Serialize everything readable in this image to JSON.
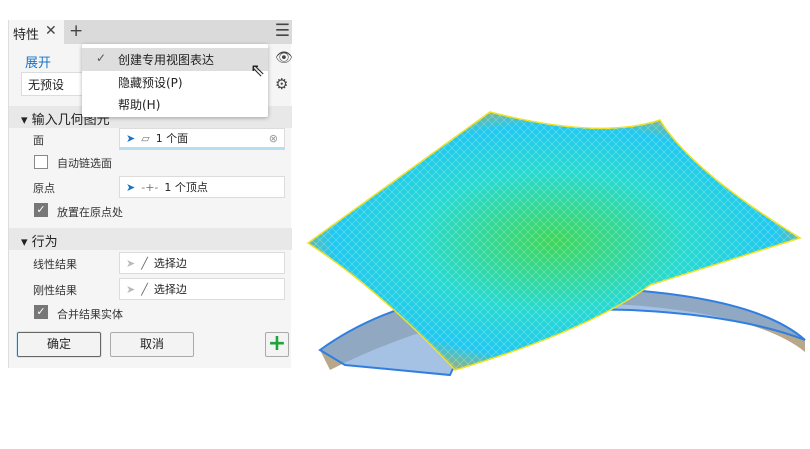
{
  "panel": {
    "tab_label": "特性",
    "expand_link": "展开",
    "preset_value": "无预设",
    "section_input": "输入几何图元",
    "face_label": "面",
    "face_value": "1 个面",
    "auto_chain_label": "自动链选面",
    "auto_chain_checked": false,
    "origin_label": "原点",
    "origin_value": "1 个顶点",
    "place_at_origin_label": "放置在原点处",
    "place_at_origin_checked": true,
    "section_behavior": "行为",
    "linear_label": "线性结果",
    "linear_value": "选择边",
    "rigid_label": "刚性结果",
    "rigid_value": "选择边",
    "merge_label": "合并结果实体",
    "merge_checked": true,
    "ok_label": "确定",
    "cancel_label": "取消"
  },
  "menu": {
    "items": [
      {
        "label": "创建专用视图表达",
        "checked": true
      },
      {
        "label": "隐藏预设(P)"
      },
      {
        "label": "帮助(H)"
      }
    ]
  },
  "colors": {
    "accent": "#1b73c5",
    "add": "#1fa33a"
  }
}
